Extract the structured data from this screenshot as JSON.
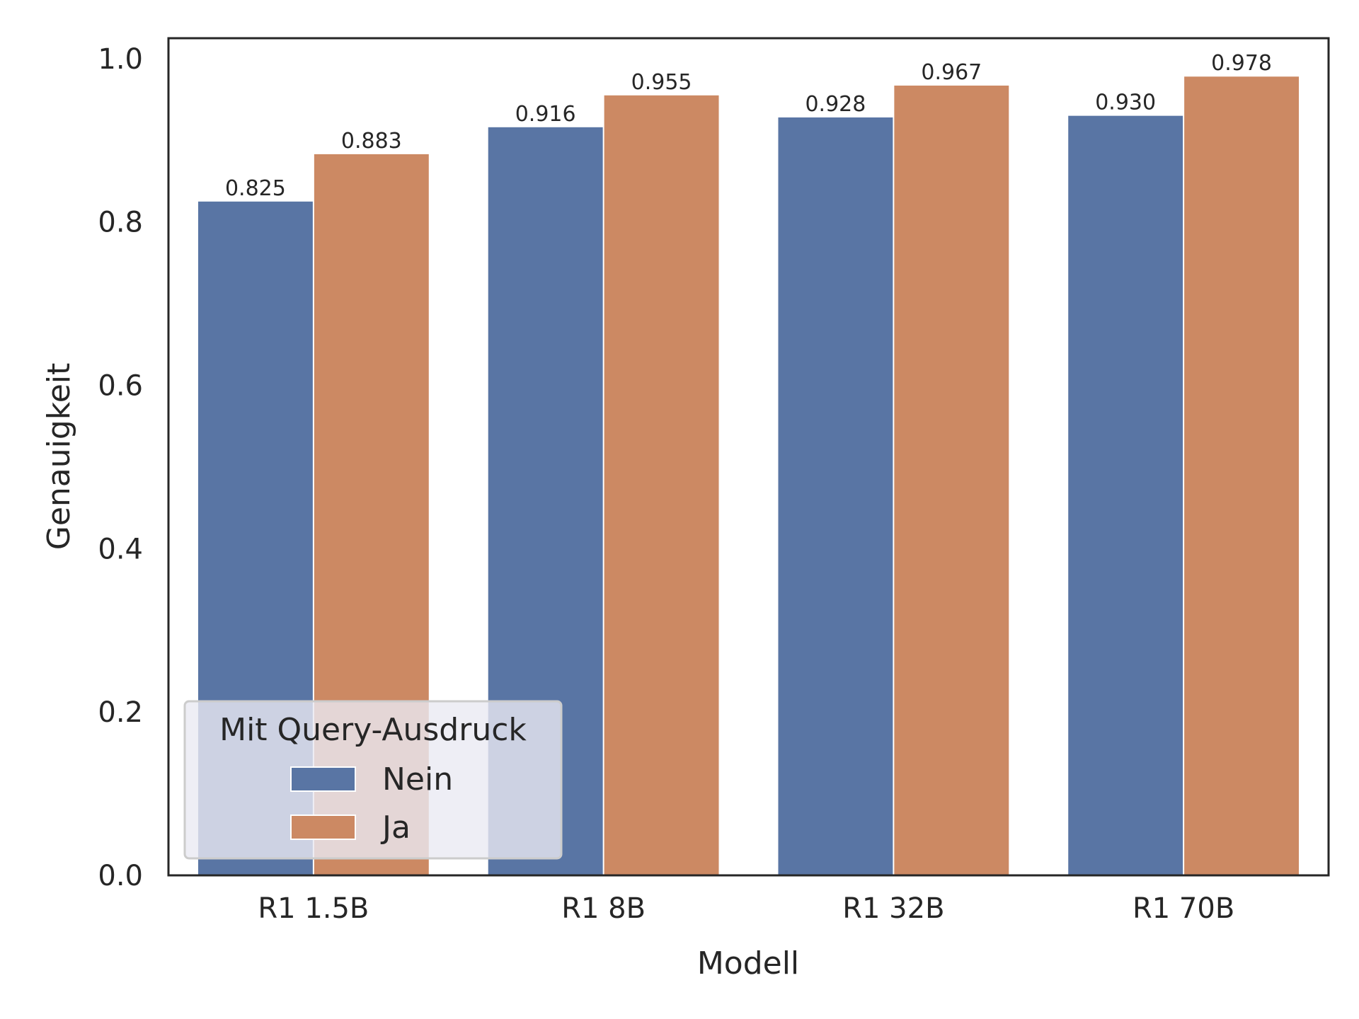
{
  "chart_data": {
    "type": "bar",
    "categories": [
      "R1 1.5B",
      "R1 8B",
      "R1 32B",
      "R1 70B"
    ],
    "series": [
      {
        "name": "Nein",
        "values": [
          0.825,
          0.916,
          0.928,
          0.93
        ],
        "labels": [
          "0.825",
          "0.916",
          "0.928",
          "0.930"
        ],
        "color": "#5975a4"
      },
      {
        "name": "Ja",
        "values": [
          0.883,
          0.955,
          0.967,
          0.978
        ],
        "labels": [
          "0.883",
          "0.955",
          "0.967",
          "0.978"
        ],
        "color": "#cc8963"
      }
    ],
    "xlabel": "Modell",
    "ylabel": "Genauigkeit",
    "ylim": [
      0,
      1.025
    ],
    "yticks": [
      0.0,
      0.2,
      0.4,
      0.6,
      0.8,
      1.0
    ],
    "ytick_labels": [
      "0.0",
      "0.2",
      "0.4",
      "0.6",
      "0.8",
      "1.0"
    ],
    "grid": false,
    "legend": {
      "title": "Mit Query-Ausdruck",
      "placement": "lower-left"
    }
  }
}
